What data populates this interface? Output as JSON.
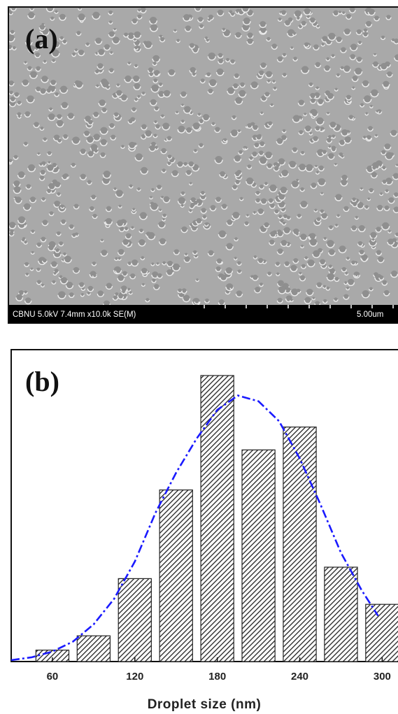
{
  "sem_image": {
    "label": "(a)",
    "info": "CBNU 5.0kV 7.4mm x10.0k SE(M)",
    "scale": "5.00um"
  },
  "chart_data": {
    "type": "bar",
    "panel_label": "(b)",
    "xlabel": "Droplet size (nm)",
    "x": [
      60,
      90,
      120,
      150,
      180,
      210,
      240,
      270,
      300
    ],
    "values": [
      4,
      9,
      29,
      60,
      100,
      74,
      82,
      33,
      20
    ],
    "bar_width": 24,
    "color": "#222222",
    "hatch": true,
    "xlim": [
      30,
      311
    ],
    "ylim": [
      0,
      100
    ],
    "xticks": [
      60,
      120,
      180,
      240,
      300
    ],
    "fit": {
      "x": [
        30,
        45,
        60,
        75,
        90,
        105,
        120,
        135,
        150,
        165,
        180,
        195,
        210,
        225,
        240,
        255,
        270,
        285,
        297
      ],
      "values": [
        0.5,
        1.5,
        3.5,
        7,
        13,
        22,
        35,
        52,
        66,
        78,
        88,
        93,
        91,
        84,
        71,
        55,
        38,
        25,
        16
      ],
      "color": "#1a1aff",
      "style": "dashdot"
    }
  }
}
